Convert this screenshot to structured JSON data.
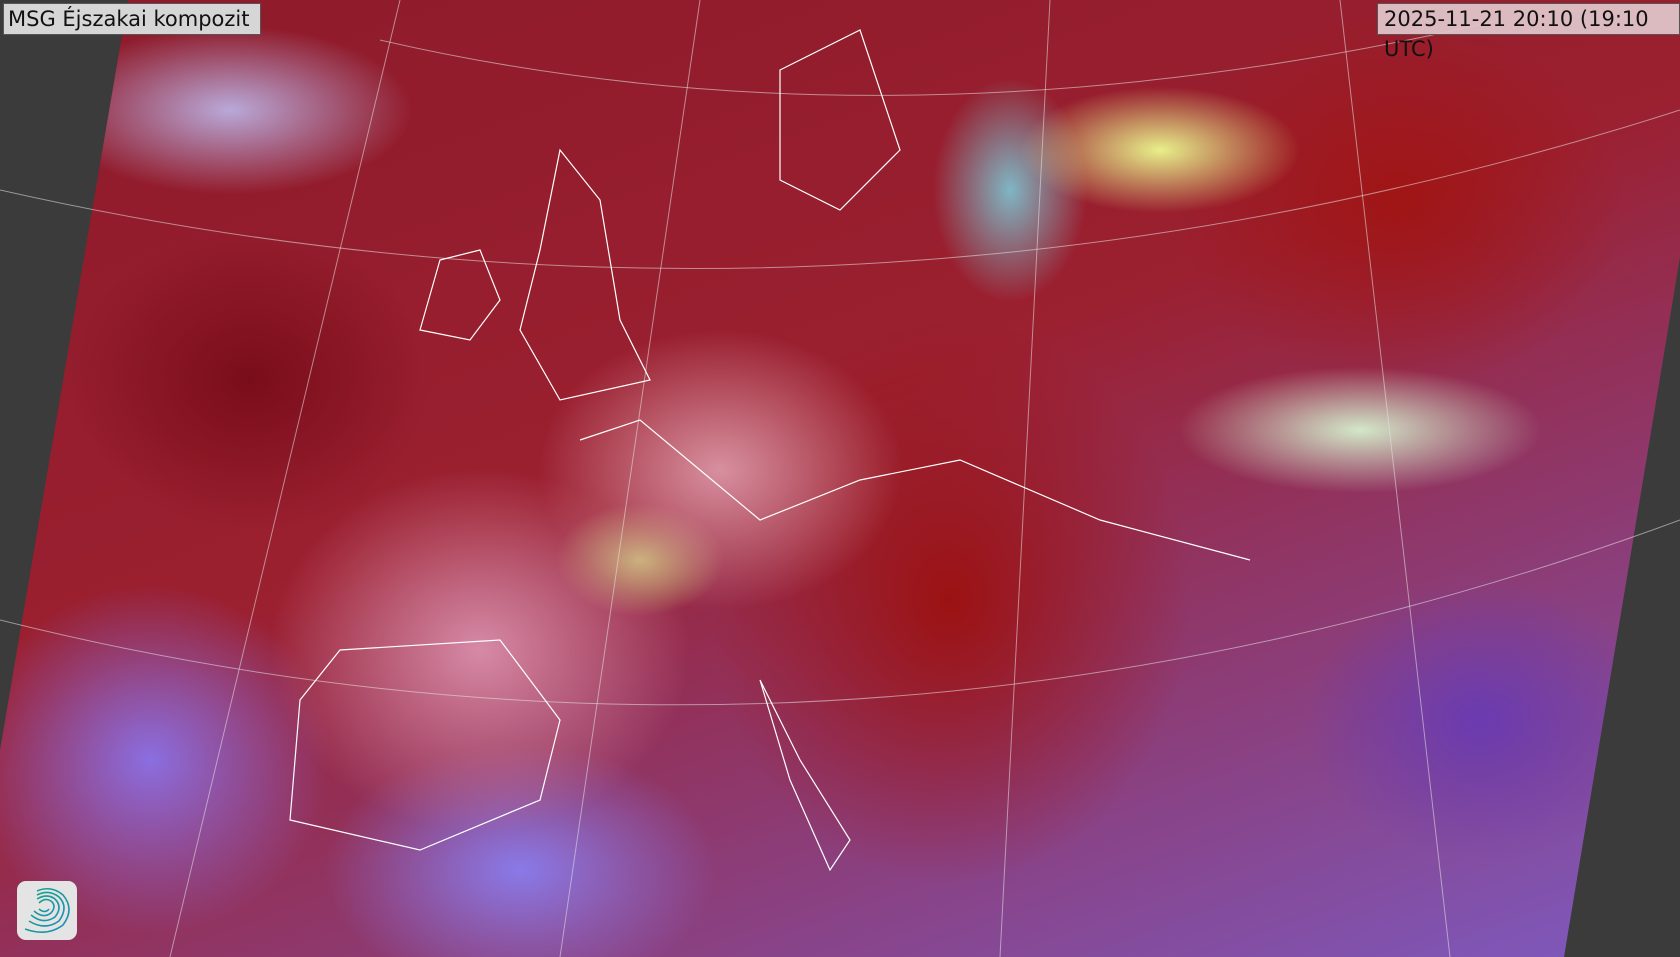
{
  "title": "MSG Éjszakai kompozit",
  "timestamp": "2025-11-21 20:10 (19:10 UTC)",
  "logo": {
    "icon": "swirl-logo",
    "colors": [
      "#1aa38a",
      "#1b8fb5"
    ]
  },
  "map": {
    "product": "night composite",
    "no_data_color": "#3b3b3b"
  }
}
